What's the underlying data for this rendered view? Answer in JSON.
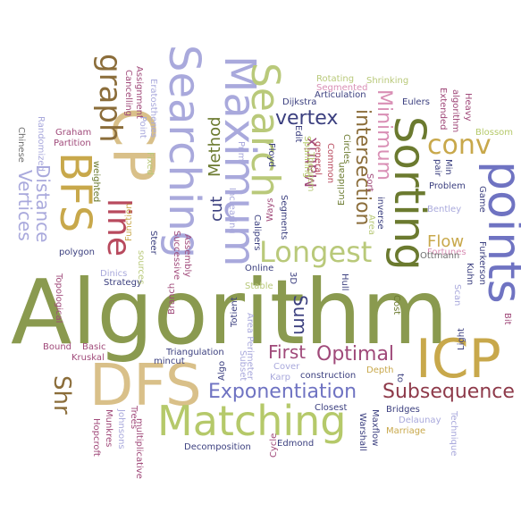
{
  "palette": {
    "olive": "#8a9a4f",
    "light_olive": "#b9c97a",
    "lime": "#b5c96a",
    "dark_olive": "#6b7a2f",
    "mustard": "#c8a84b",
    "tan": "#d9c089",
    "brown": "#8b6d3a",
    "lavender": "#a9a9dc",
    "periwinkle": "#6f73c2",
    "navy": "#3b3f7f",
    "pink": "#d98fb5",
    "magenta": "#a04a7a",
    "red": "#b84a5e",
    "maroon": "#8e3a4a",
    "grey": "#6e6e6e"
  },
  "words": [
    {
      "text": "Algorithm",
      "color": "olive"
    },
    {
      "text": "DFS",
      "color": "tan"
    },
    {
      "text": "Matching",
      "color": "lime"
    },
    {
      "text": "Sorting",
      "color": "dark_olive"
    },
    {
      "text": "Searching",
      "color": "lavender"
    },
    {
      "text": "Maximum",
      "color": "lavender"
    },
    {
      "text": "Search",
      "color": "light_olive"
    },
    {
      "text": "CP",
      "color": "tan"
    },
    {
      "text": "BFS",
      "color": "mustard"
    },
    {
      "text": "ICP",
      "color": "mustard"
    },
    {
      "text": "points",
      "color": "periwinkle"
    },
    {
      "text": "Longest",
      "color": "light_olive"
    },
    {
      "text": "graph",
      "color": "brown"
    },
    {
      "text": "line",
      "color": "red"
    },
    {
      "text": "Exponentiation",
      "color": "periwinkle"
    },
    {
      "text": "Optimal",
      "color": "magenta"
    },
    {
      "text": "Subsequence",
      "color": "maroon"
    },
    {
      "text": "conv",
      "color": "mustard"
    },
    {
      "text": "vertex",
      "color": "navy"
    },
    {
      "text": "intersection",
      "color": "brown"
    },
    {
      "text": "Minimum",
      "color": "pink"
    },
    {
      "text": "Distance",
      "color": "lavender"
    },
    {
      "text": "Vertices",
      "color": "lavender"
    },
    {
      "text": "Matrix",
      "color": "magenta"
    },
    {
      "text": "Method",
      "color": "dark_olive"
    },
    {
      "text": "cut",
      "color": "navy"
    },
    {
      "text": "Flow",
      "color": "mustard"
    },
    {
      "text": "First",
      "color": "magenta"
    },
    {
      "text": "Shr",
      "color": "brown"
    },
    {
      "text": "Sum",
      "color": "navy"
    },
    {
      "text": "Bit",
      "color": "magenta"
    },
    {
      "text": "Ge",
      "color": "light_olive"
    },
    {
      "text": "Cost",
      "color": "dark_olive"
    },
    {
      "text": "Light",
      "color": "navy"
    },
    {
      "text": "Graham",
      "color": "magenta"
    },
    {
      "text": "Partition",
      "color": "magenta"
    },
    {
      "text": "Chinese",
      "color": "grey"
    },
    {
      "text": "Randomized",
      "color": "lavender"
    },
    {
      "text": "weighted",
      "color": "dark_olive"
    },
    {
      "text": "polygon",
      "color": "navy"
    },
    {
      "text": "Kruskal",
      "color": "magenta"
    },
    {
      "text": "Basic",
      "color": "magenta"
    },
    {
      "text": "Bound",
      "color": "magenta"
    },
    {
      "text": "Strategy",
      "color": "navy"
    },
    {
      "text": "Dinics",
      "color": "lavender"
    },
    {
      "text": "Topological",
      "color": "magenta"
    },
    {
      "text": "Online",
      "color": "navy"
    },
    {
      "text": "Stable",
      "color": "light_olive"
    },
    {
      "text": "Triangulation",
      "color": "navy"
    },
    {
      "text": "mincut",
      "color": "navy"
    },
    {
      "text": "Algo",
      "color": "navy"
    },
    {
      "text": "construction",
      "color": "navy"
    },
    {
      "text": "Closest",
      "color": "navy"
    },
    {
      "text": "Bridges",
      "color": "navy"
    },
    {
      "text": "Delaunay",
      "color": "lavender"
    },
    {
      "text": "Marriage",
      "color": "mustard"
    },
    {
      "text": "Decomposition",
      "color": "navy"
    },
    {
      "text": "Edmond",
      "color": "navy"
    },
    {
      "text": "Cover",
      "color": "lavender"
    },
    {
      "text": "Karp",
      "color": "lavender"
    },
    {
      "text": "Depth",
      "color": "mustard"
    },
    {
      "text": "Fortunes",
      "color": "pink"
    },
    {
      "text": "Ottmann",
      "color": "grey"
    },
    {
      "text": "Problem",
      "color": "navy"
    },
    {
      "text": "Bentley",
      "color": "lavender"
    },
    {
      "text": "Eulers",
      "color": "navy"
    },
    {
      "text": "Rotating",
      "color": "light_olive"
    },
    {
      "text": "Shrinking",
      "color": "light_olive"
    },
    {
      "text": "Segmented",
      "color": "pink"
    },
    {
      "text": "Articulation",
      "color": "navy"
    },
    {
      "text": "Dijkstra",
      "color": "navy"
    },
    {
      "text": "Common",
      "color": "red"
    },
    {
      "text": "general",
      "color": "red"
    },
    {
      "text": "Euclidean",
      "color": "dark_olive"
    },
    {
      "text": "Theorem",
      "color": "light_olive"
    },
    {
      "text": "Floyd",
      "color": "navy"
    },
    {
      "text": "Calipers",
      "color": "navy"
    },
    {
      "text": "Prim",
      "color": "lavender"
    },
    {
      "text": "Increasing",
      "color": "lavender"
    },
    {
      "text": "Successive",
      "color": "magenta"
    },
    {
      "text": "Assembly",
      "color": "magenta"
    },
    {
      "text": "Steer",
      "color": "navy"
    },
    {
      "text": "Function",
      "color": "mustard"
    },
    {
      "text": "Assignment",
      "color": "magenta"
    },
    {
      "text": "Cancelling",
      "color": "magenta"
    },
    {
      "text": "Point",
      "color": "lavender"
    },
    {
      "text": "Eratosthenes",
      "color": "lavender"
    },
    {
      "text": "Hopcroft",
      "color": "magenta"
    },
    {
      "text": "Munkres",
      "color": "magenta"
    },
    {
      "text": "Johnsons",
      "color": "lavender"
    },
    {
      "text": "multiplicative",
      "color": "magenta"
    },
    {
      "text": "Trees",
      "color": "magenta"
    },
    {
      "text": "Branch",
      "color": "magenta"
    },
    {
      "text": "Totient",
      "color": "navy"
    },
    {
      "text": "Area Perimeter",
      "color": "lavender"
    },
    {
      "text": "Subset",
      "color": "lavender"
    },
    {
      "text": "Cycle",
      "color": "magenta"
    },
    {
      "text": "Maxflow",
      "color": "navy"
    },
    {
      "text": "Warshall",
      "color": "navy"
    },
    {
      "text": "Technique",
      "color": "lavender"
    },
    {
      "text": "Game",
      "color": "navy"
    },
    {
      "text": "Kuhn",
      "color": "navy"
    },
    {
      "text": "Furkerson",
      "color": "navy"
    },
    {
      "text": "Scan",
      "color": "lavender"
    },
    {
      "text": "Sort",
      "color": "magenta"
    },
    {
      "text": "Area",
      "color": "light_olive"
    },
    {
      "text": "inverse",
      "color": "navy"
    },
    {
      "text": "Edit",
      "color": "navy"
    },
    {
      "text": "Circles",
      "color": "dark_olive"
    },
    {
      "text": "Ways",
      "color": "magenta"
    },
    {
      "text": "Extended",
      "color": "magenta"
    },
    {
      "text": "algorithm",
      "color": "magenta"
    },
    {
      "text": "Heavy",
      "color": "magenta"
    },
    {
      "text": "Blossom",
      "color": "lime"
    },
    {
      "text": "pair",
      "color": "navy"
    },
    {
      "text": "Min",
      "color": "navy"
    },
    {
      "text": "3D",
      "color": "navy"
    },
    {
      "text": "Spanning",
      "color": "lime"
    },
    {
      "text": "Segments",
      "color": "navy"
    },
    {
      "text": "Hull",
      "color": "navy"
    },
    {
      "text": "sources",
      "color": "light_olive"
    },
    {
      "text": "Fixed",
      "color": "light_olive"
    },
    {
      "text": "to",
      "color": "navy"
    }
  ]
}
